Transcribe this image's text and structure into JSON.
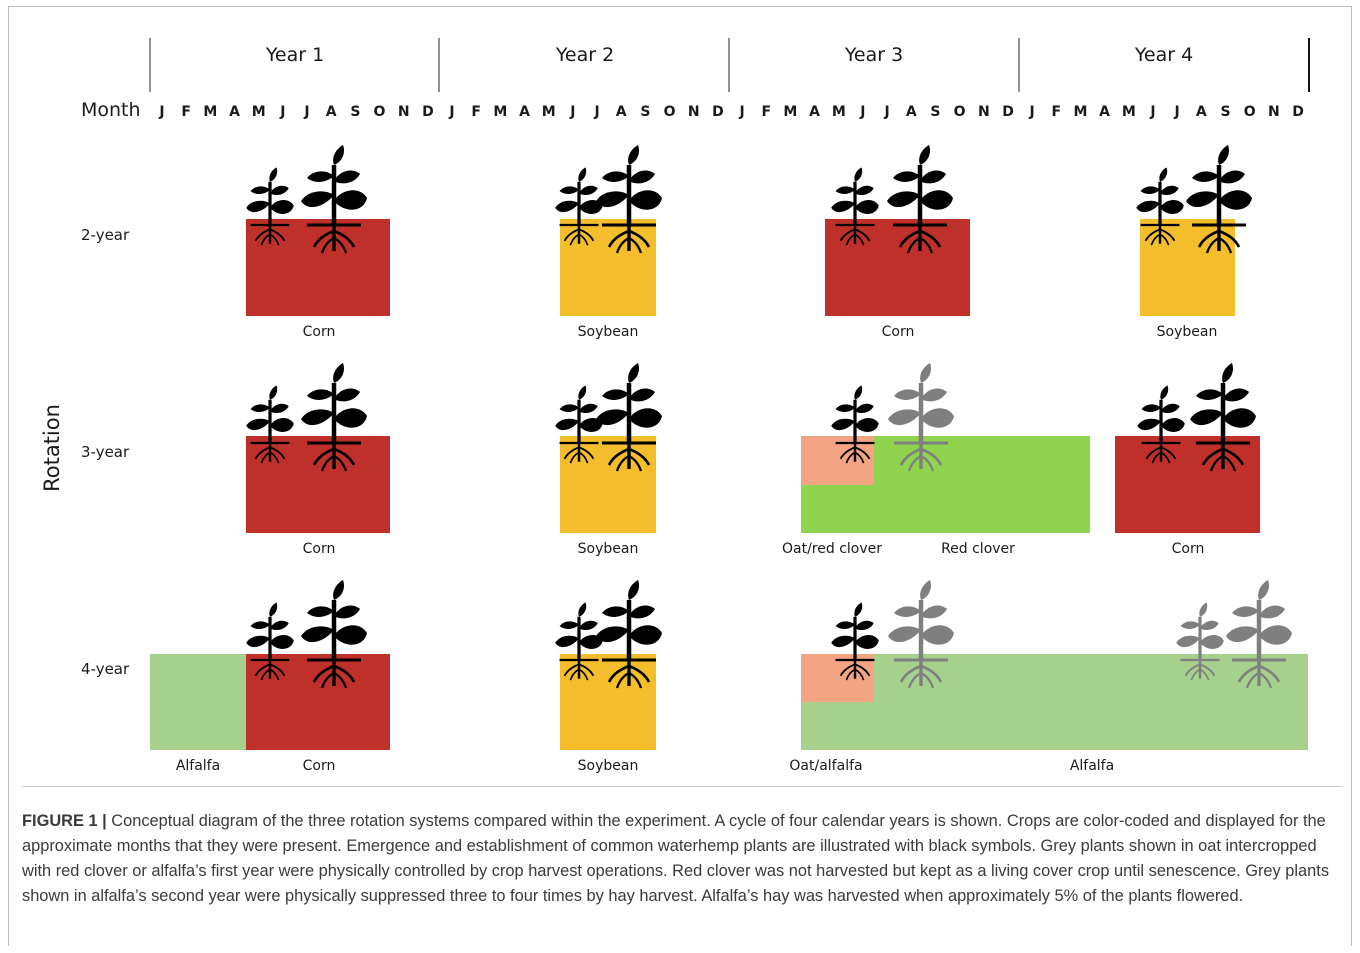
{
  "timeline": {
    "years": [
      "Year 1",
      "Year 2",
      "Year 3",
      "Year 4"
    ],
    "month_label": "Month",
    "months": [
      "J",
      "F",
      "M",
      "A",
      "M",
      "J",
      "J",
      "A",
      "S",
      "O",
      "N",
      "D"
    ]
  },
  "axis_label": "Rotation",
  "rows": [
    {
      "label": "2-year",
      "crop_labels": [
        "Corn",
        "Soybean",
        "Corn",
        "Soybean"
      ]
    },
    {
      "label": "3-year",
      "crop_labels": [
        "Corn",
        "Soybean",
        "Oat/red clover",
        "Red clover",
        "Corn"
      ]
    },
    {
      "label": "4-year",
      "crop_labels": [
        "Alfalfa",
        "Corn",
        "Soybean",
        "Oat/alfalfa",
        "Alfalfa"
      ]
    }
  ],
  "colors": {
    "corn": "#c0302a",
    "soybean": "#f4bd2c",
    "oat": "#f3a482",
    "red_clover": "#8fd34f",
    "alfalfa": "#a6d18c",
    "weed_emerged": "#000000",
    "weed_controlled": "#7f7f7f"
  },
  "icons": [
    "weed-plant-icon"
  ],
  "caption": {
    "figure_label": "FIGURE 1 |",
    "text": "Conceptual diagram of the three rotation systems compared within the experiment. A cycle of four calendar years is shown. Crops are color-coded and displayed for the approximate months that they were present. Emergence and establishment of common waterhemp plants are illustrated with black symbols. Grey plants shown in oat intercropped with red clover or alfalfa’s first year were physically controlled by crop harvest operations. Red clover was not harvested but kept as a living cover crop until senescence. Grey plants shown in alfalfa’s second year were physically suppressed three to four times by hay harvest. Alfalfa’s hay was harvested when approximately 5% of the plants flowered."
  }
}
